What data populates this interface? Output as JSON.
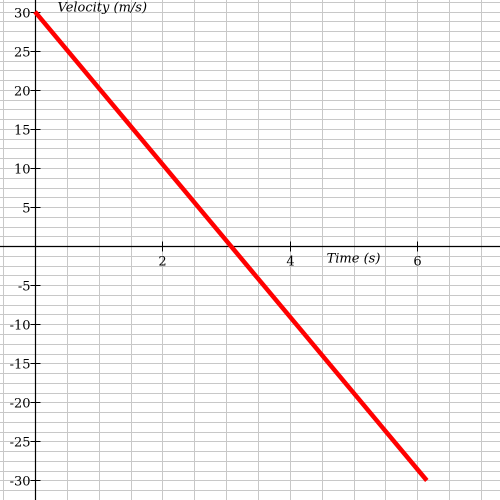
{
  "chart_data": {
    "type": "line",
    "xlabel": "Time (s)",
    "ylabel": "Velocity (m/s)",
    "xlim": [
      -0.55,
      7.3
    ],
    "ylim": [
      -32.5,
      31.5
    ],
    "x_ticks": [
      2,
      4,
      6
    ],
    "y_ticks": [
      30,
      25,
      20,
      15,
      10,
      5,
      -5,
      -10,
      -15,
      -20,
      -25,
      -30
    ],
    "x_grid_step": 0.5,
    "y_grid_step": 1.25,
    "grid": true,
    "series": [
      {
        "color": "#ff0000",
        "x": [
          0,
          6.15
        ],
        "y": [
          30,
          -30
        ]
      }
    ]
  }
}
